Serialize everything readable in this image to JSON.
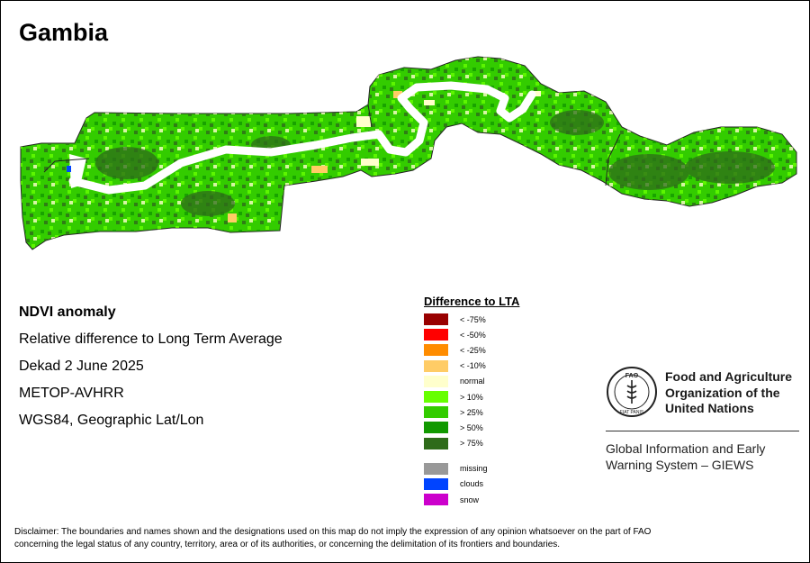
{
  "map_title": "Gambia",
  "info": {
    "product": "NDVI anomaly",
    "description": "Relative difference to Long Term Average",
    "period": "Dekad 2 June 2025",
    "sensor": "METOP-AVHRR",
    "projection": "WGS84, Geographic Lat/Lon"
  },
  "legend": {
    "title": "Difference to LTA",
    "classes": [
      {
        "label": "< -75%",
        "color": "#990000"
      },
      {
        "label": "< -50%",
        "color": "#ff0000"
      },
      {
        "label": "< -25%",
        "color": "#ff8c00"
      },
      {
        "label": "< -10%",
        "color": "#ffcc66"
      },
      {
        "label": "normal",
        "color": "#ffffcc"
      },
      {
        "label": "> 10%",
        "color": "#66ff00"
      },
      {
        "label": "> 25%",
        "color": "#33cc00"
      },
      {
        "label": "> 50%",
        "color": "#119900"
      },
      {
        "label": "> 75%",
        "color": "#2e6b1a"
      }
    ],
    "extra": [
      {
        "label": "missing",
        "color": "#999999"
      },
      {
        "label": "clouds",
        "color": "#0044ff"
      },
      {
        "label": "snow",
        "color": "#cc00cc"
      }
    ]
  },
  "fao": {
    "name_lines": [
      "Food and Agriculture",
      "Organization of the",
      "United Nations"
    ],
    "emblem_text": "FAO",
    "emblem_motto": "FIAT PANIS",
    "giews_lines": [
      "Global Information and Early",
      "Warning System – GIEWS"
    ]
  },
  "disclaimer_lines": [
    "Disclaimer: The boundaries and names shown and the designations used on this map do not imply the expression of any opinion whatsoever on the part of FAO",
    "concerning the legal status of any country, territory, area or of its authorities, or concerning the delimitation of its frontiers and boundaries."
  ]
}
